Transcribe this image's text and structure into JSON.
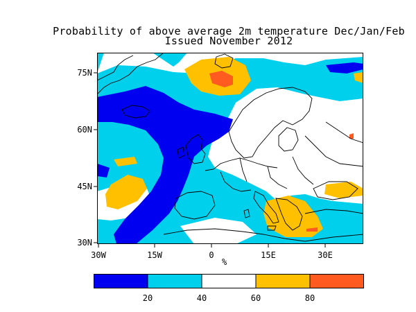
{
  "title_line1": "Probability of above average 2m temperature Dec/Jan/Feb",
  "title_line2": "Issued November 2012",
  "lat_ticks": [
    {
      "label": "75N",
      "value": 75
    },
    {
      "label": "60N",
      "value": 60
    },
    {
      "label": "45N",
      "value": 45
    },
    {
      "label": "30N",
      "value": 30
    }
  ],
  "lon_ticks": [
    {
      "label": "30W",
      "value": -30
    },
    {
      "label": "15W",
      "value": -15
    },
    {
      "label": "0",
      "value": 0
    },
    {
      "label": "15E",
      "value": 15
    },
    {
      "label": "30E",
      "value": 30
    }
  ],
  "unit_label": "%",
  "colorbar": {
    "bins": [
      {
        "range": [
          0,
          20
        ],
        "color": "#0000ff"
      },
      {
        "range": [
          20,
          40
        ],
        "color": "#00ccee"
      },
      {
        "range": [
          40,
          60
        ],
        "color": "#ffffff"
      },
      {
        "range": [
          60,
          80
        ],
        "color": "#ffc000"
      },
      {
        "range": [
          80,
          100
        ],
        "color": "#ff5a20"
      }
    ],
    "tick_labels": [
      "20",
      "40",
      "60",
      "80"
    ]
  },
  "map_extent": {
    "lon": [
      -30,
      40
    ],
    "lat": [
      29,
      80
    ]
  }
}
